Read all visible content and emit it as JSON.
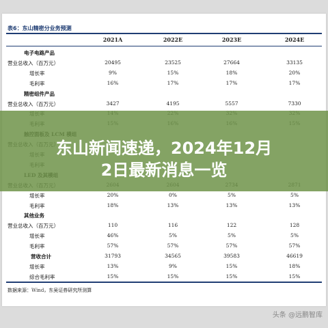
{
  "table": {
    "title": "表6：东山精密分业务预测",
    "headers": [
      "2021A",
      "2022E",
      "2023E",
      "2024E"
    ],
    "rows": [
      {
        "label": "电子电路产品",
        "type": "sec",
        "values": [
          "",
          "",
          "",
          ""
        ]
      },
      {
        "label": "营业总收入（百万元）",
        "type": "main",
        "values": [
          "20495",
          "23525",
          "27664",
          "33135"
        ]
      },
      {
        "label": "增长率",
        "type": "ind",
        "values": [
          "9%",
          "15%",
          "18%",
          "20%"
        ]
      },
      {
        "label": "毛利率",
        "type": "ind",
        "values": [
          "16%",
          "17%",
          "17%",
          "17%"
        ]
      },
      {
        "label": "精密组件产品",
        "type": "sec",
        "values": [
          "",
          "",
          "",
          ""
        ]
      },
      {
        "label": "营业总收入（百万元）",
        "type": "main",
        "values": [
          "3427",
          "4195",
          "5557",
          "7330"
        ]
      },
      {
        "label": "增长率",
        "type": "ind",
        "values": [
          "14%",
          "22%",
          "32%",
          "32%"
        ]
      },
      {
        "label": "毛利率",
        "type": "ind",
        "values": [
          "15%",
          "16%",
          "16%",
          "15%"
        ]
      },
      {
        "label": "触控面板及 LCM 模组",
        "type": "sec",
        "values": [
          "",
          "",
          "",
          ""
        ]
      },
      {
        "label": "营业总收入（百万元）",
        "type": "main",
        "values": [
          "",
          "",
          "",
          ""
        ]
      },
      {
        "label": "增长率",
        "type": "ind",
        "values": [
          "",
          "",
          "",
          ""
        ]
      },
      {
        "label": "毛利率",
        "type": "ind",
        "values": [
          "",
          "",
          "",
          ""
        ]
      },
      {
        "label": "LED 及其模组",
        "type": "sec",
        "values": [
          "",
          "",
          "",
          ""
        ]
      },
      {
        "label": "营业总收入（百万元）",
        "type": "main",
        "values": [
          "2604",
          "2604",
          "2734",
          "2871"
        ]
      },
      {
        "label": "增长率",
        "type": "ind",
        "values": [
          "20%",
          "0%",
          "5%",
          "5%"
        ]
      },
      {
        "label": "毛利率",
        "type": "ind",
        "values": [
          "18%",
          "13%",
          "13%",
          "13%"
        ]
      },
      {
        "label": "其他业务",
        "type": "sec",
        "values": [
          "",
          "",
          "",
          ""
        ]
      },
      {
        "label": "营业总收入（百万元）",
        "type": "main",
        "values": [
          "110",
          "116",
          "122",
          "128"
        ]
      },
      {
        "label": "增长率",
        "type": "ind",
        "values": [
          "46%",
          "5%",
          "5%",
          "5%"
        ]
      },
      {
        "label": "毛利率",
        "type": "ind",
        "values": [
          "57%",
          "57%",
          "57%",
          "57%"
        ]
      },
      {
        "label": "营收合计",
        "type": "tot",
        "values": [
          "31793",
          "34565",
          "39583",
          "46619"
        ]
      },
      {
        "label": "增长率",
        "type": "ind",
        "values": [
          "13%",
          "9%",
          "15%",
          "18%"
        ]
      },
      {
        "label": "综合毛利率",
        "type": "ind",
        "values": [
          "15%",
          "15%",
          "15%",
          "15%"
        ]
      }
    ],
    "source": "数据来源：Wind，东吴证券研究所测算"
  },
  "banner": {
    "line1": "东山新闻速递，2024年12月",
    "line2": "2日最新消息一览",
    "color": "#70944a"
  },
  "watermark": "头条 @远鹏智库"
}
